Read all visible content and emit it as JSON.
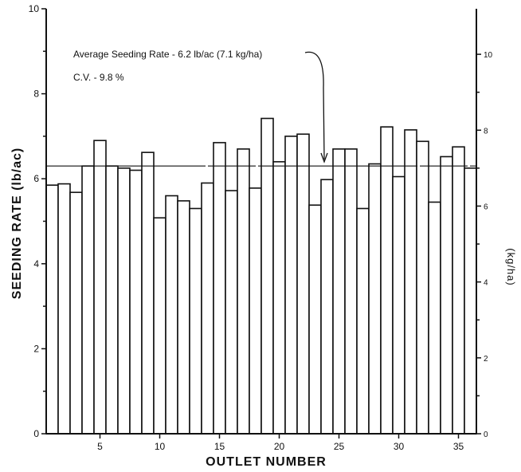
{
  "chart_data": {
    "type": "bar",
    "title": "",
    "xlabel": "OUTLET NUMBER",
    "ylabel": "SEEDING RATE (lb/ac)",
    "ylabel_right": "(kg/ha)",
    "ylim": [
      0,
      10
    ],
    "ylim_right": [
      0,
      11.2
    ],
    "x_ticks": [
      "5",
      "10",
      "15",
      "20",
      "25",
      "30",
      "35"
    ],
    "y_ticks": [
      "0",
      "2",
      "4",
      "6",
      "8",
      "10"
    ],
    "y_ticks_right": [
      "0",
      "2",
      "4",
      "6",
      "8",
      "10"
    ],
    "categories": [
      1,
      2,
      3,
      4,
      5,
      6,
      7,
      8,
      9,
      10,
      11,
      12,
      13,
      14,
      15,
      16,
      17,
      18,
      19,
      20,
      21,
      22,
      23,
      24,
      25,
      26,
      27,
      28,
      29,
      30,
      31,
      32,
      33,
      34,
      35,
      36
    ],
    "values": [
      5.85,
      5.88,
      5.68,
      6.3,
      6.9,
      6.3,
      6.25,
      6.2,
      6.62,
      5.08,
      5.6,
      5.48,
      5.3,
      5.9,
      6.85,
      5.72,
      6.7,
      5.78,
      7.42,
      6.4,
      7.0,
      7.05,
      5.38,
      5.98,
      6.7,
      6.7,
      5.3,
      6.35,
      7.22,
      6.05,
      7.15,
      6.88,
      5.45,
      6.52,
      6.75,
      6.25
    ],
    "average": 6.3,
    "grid": false,
    "legend": "none",
    "annotations": [
      "Average Seeding Rate - 6.2 lb/ac (7.1 kg/ha)",
      "C.V. - 9.8 %"
    ]
  }
}
